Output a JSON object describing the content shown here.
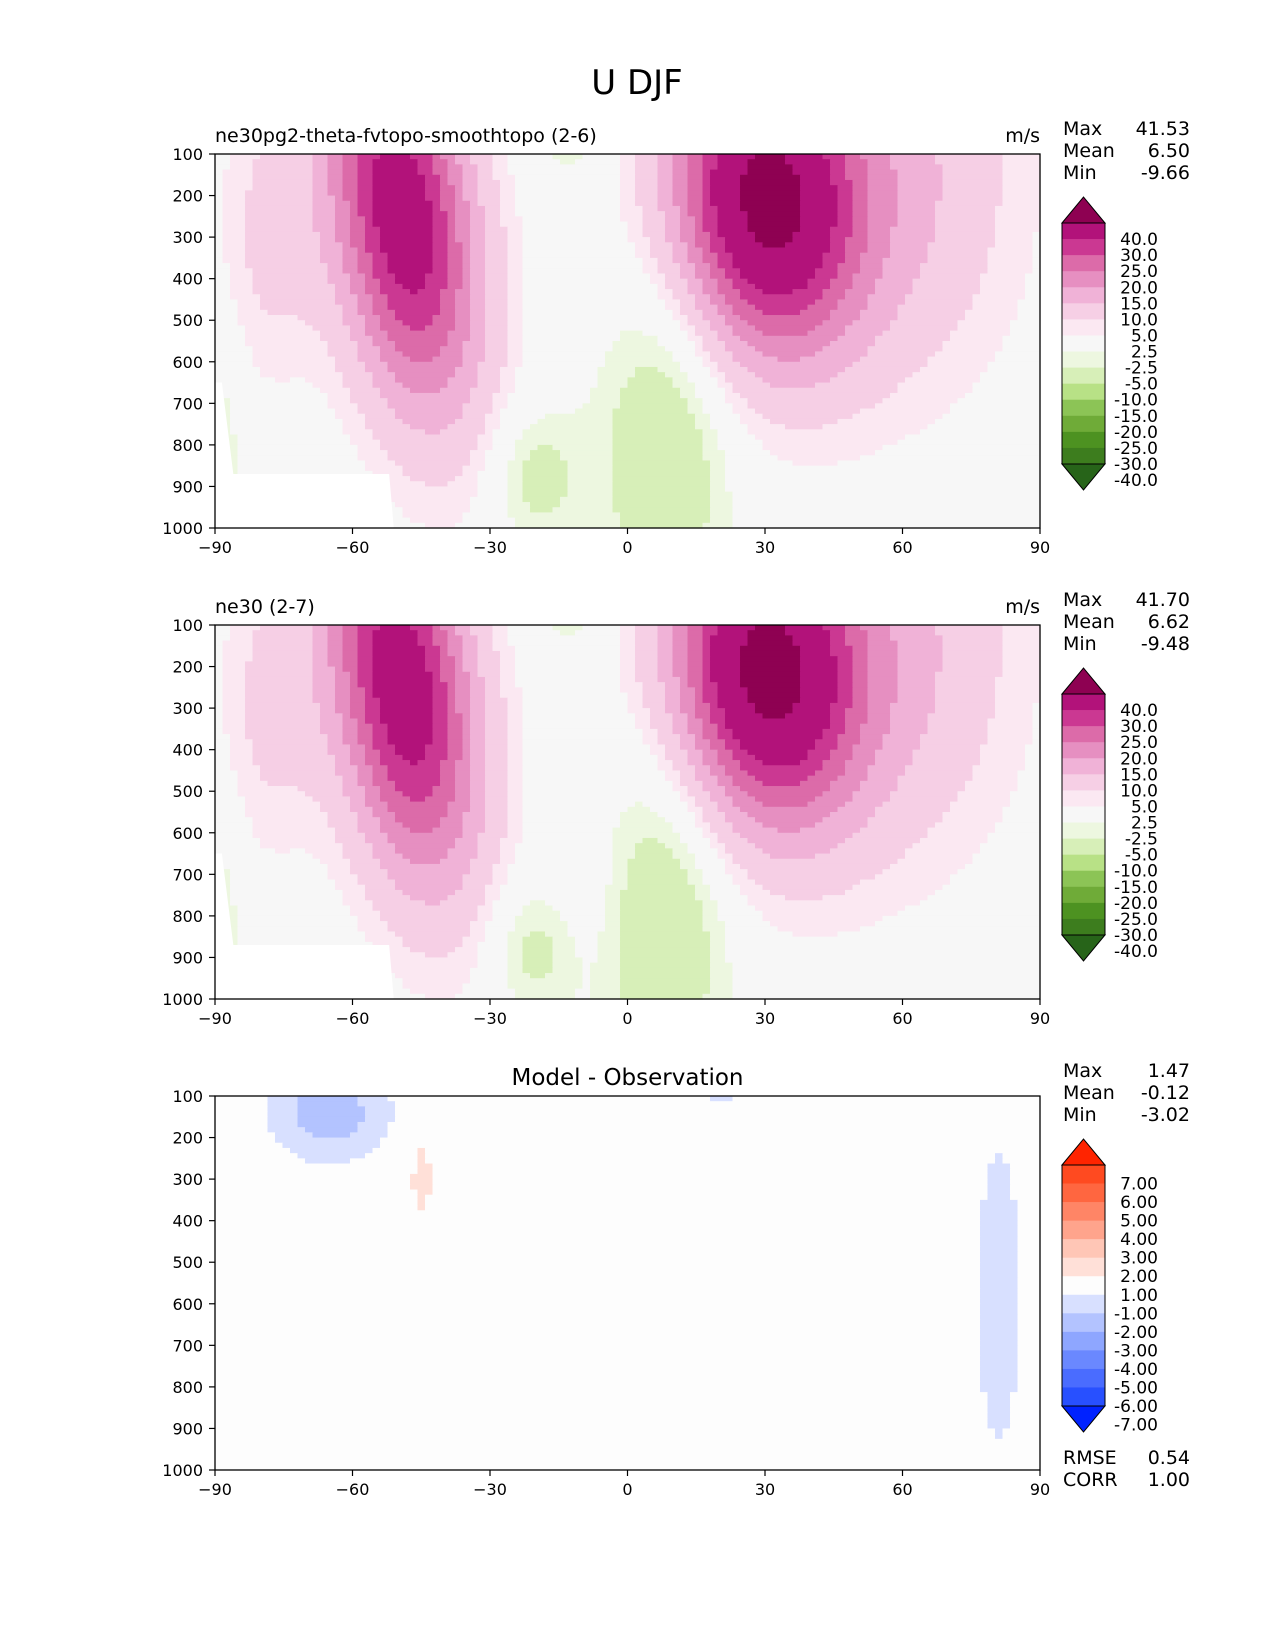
{
  "figure_title": "U DJF",
  "colors": {
    "u_levels": [
      -40,
      -30,
      -25,
      -20,
      -15,
      -10,
      -5,
      -2.5,
      2.5,
      5,
      10,
      15,
      20,
      25,
      30,
      40
    ],
    "u_fills": [
      "#276419",
      "#3d7d1e",
      "#4d9221",
      "#6fab38",
      "#8cc456",
      "#b8e186",
      "#d7efb8",
      "#edf7e0",
      "#f7f7f7",
      "#fbe8f2",
      "#f6cfe5",
      "#f0b2d7",
      "#e68fc1",
      "#dc6ba9",
      "#cb3892",
      "#b2127a",
      "#8e0152"
    ],
    "d_levels": [
      -7,
      -6,
      -5,
      -4,
      -3,
      -2,
      -1,
      1,
      2,
      3,
      4,
      5,
      6,
      7
    ],
    "d_fills": [
      "#0022ff",
      "#2850ff",
      "#4a6cff",
      "#6a88ff",
      "#8ea6ff",
      "#b3c3ff",
      "#d8e0ff",
      "#fdfdfd",
      "#ffe0d8",
      "#ffc6b6",
      "#ffa48c",
      "#ff8566",
      "#ff6640",
      "#ff4a20",
      "#ff2400"
    ]
  },
  "panels": [
    {
      "id": "test",
      "left_title": "ne30pg2-theta-fvtopo-smoothtopo (2-6)",
      "center_title": "",
      "units": "m/s",
      "stats": [
        {
          "label": "Max",
          "value": "41.53"
        },
        {
          "label": "Mean",
          "value": "6.50"
        },
        {
          "label": "Min",
          "value": "-9.66"
        }
      ],
      "colorbar_labels": [
        "40.0",
        "30.0",
        "25.0",
        "20.0",
        "15.0",
        "10.0",
        "5.0",
        "2.5",
        "-2.5",
        "-5.0",
        "-10.0",
        "-15.0",
        "-20.0",
        "-25.0",
        "-30.0",
        "-40.0"
      ],
      "extra": []
    },
    {
      "id": "ref",
      "left_title": "ne30 (2-7)",
      "center_title": "",
      "units": "m/s",
      "stats": [
        {
          "label": "Max",
          "value": "41.70"
        },
        {
          "label": "Mean",
          "value": "6.62"
        },
        {
          "label": "Min",
          "value": "-9.48"
        }
      ],
      "colorbar_labels": [
        "40.0",
        "30.0",
        "25.0",
        "20.0",
        "15.0",
        "10.0",
        "5.0",
        "2.5",
        "-2.5",
        "-5.0",
        "-10.0",
        "-15.0",
        "-20.0",
        "-25.0",
        "-30.0",
        "-40.0"
      ],
      "extra": []
    },
    {
      "id": "diff",
      "left_title": "",
      "center_title": "Model - Observation",
      "units": "",
      "stats": [
        {
          "label": "Max",
          "value": "1.47"
        },
        {
          "label": "Mean",
          "value": "-0.12"
        },
        {
          "label": "Min",
          "value": "-3.02"
        }
      ],
      "colorbar_labels": [
        "7.00",
        "6.00",
        "5.00",
        "4.00",
        "3.00",
        "2.00",
        "1.00",
        "-1.00",
        "-2.00",
        "-3.00",
        "-4.00",
        "-5.00",
        "-6.00",
        "-7.00"
      ],
      "extra": [
        {
          "label": "RMSE",
          "value": "0.54"
        },
        {
          "label": "CORR",
          "value": "1.00"
        }
      ]
    }
  ],
  "chart_data": [
    {
      "type": "contour",
      "title": "ne30pg2-theta-fvtopo-smoothtopo (2-6)",
      "units": "m/s",
      "xlabel": "",
      "ylabel": "",
      "xlim": [
        -90,
        90
      ],
      "ylim": [
        1000,
        100
      ],
      "x_ticks": [
        -90,
        -60,
        -30,
        0,
        30,
        60,
        90
      ],
      "x_tick_labels": [
        "−90",
        "−60",
        "−30",
        "0",
        "30",
        "60",
        "90"
      ],
      "y_ticks": [
        100,
        200,
        300,
        400,
        500,
        600,
        700,
        800,
        900,
        1000
      ],
      "y_tick_labels": [
        "100",
        "200",
        "300",
        "400",
        "500",
        "600",
        "700",
        "800",
        "900",
        "1000"
      ],
      "jets": [
        {
          "lat": -49,
          "pressure": 250,
          "speed": 35
        },
        {
          "lat": 30,
          "pressure": 200,
          "speed": 41.53
        }
      ],
      "max": 41.53,
      "mean": 6.5,
      "min": -9.66
    },
    {
      "type": "contour",
      "title": "ne30 (2-7)",
      "units": "m/s",
      "xlabel": "",
      "ylabel": "",
      "xlim": [
        -90,
        90
      ],
      "ylim": [
        1000,
        100
      ],
      "x_ticks": [
        -90,
        -60,
        -30,
        0,
        30,
        60,
        90
      ],
      "x_tick_labels": [
        "−90",
        "−60",
        "−30",
        "0",
        "30",
        "60",
        "90"
      ],
      "y_ticks": [
        100,
        200,
        300,
        400,
        500,
        600,
        700,
        800,
        900,
        1000
      ],
      "y_tick_labels": [
        "100",
        "200",
        "300",
        "400",
        "500",
        "600",
        "700",
        "800",
        "900",
        "1000"
      ],
      "jets": [
        {
          "lat": -49,
          "pressure": 250,
          "speed": 35
        },
        {
          "lat": 30,
          "pressure": 200,
          "speed": 41.7
        }
      ],
      "max": 41.7,
      "mean": 6.62,
      "min": -9.48
    },
    {
      "type": "contour",
      "title": "Model - Observation",
      "units": "",
      "xlabel": "",
      "ylabel": "",
      "xlim": [
        -90,
        90
      ],
      "ylim": [
        1000,
        100
      ],
      "x_ticks": [
        -90,
        -60,
        -30,
        0,
        30,
        60,
        90
      ],
      "x_tick_labels": [
        "−90",
        "−60",
        "−30",
        "0",
        "30",
        "60",
        "90"
      ],
      "y_ticks": [
        100,
        200,
        300,
        400,
        500,
        600,
        700,
        800,
        900,
        1000
      ],
      "y_tick_labels": [
        "100",
        "200",
        "300",
        "400",
        "500",
        "600",
        "700",
        "800",
        "900",
        "1000"
      ],
      "max": 1.47,
      "mean": -0.12,
      "min": -3.02,
      "rmse": 0.54,
      "corr": 1.0
    }
  ]
}
